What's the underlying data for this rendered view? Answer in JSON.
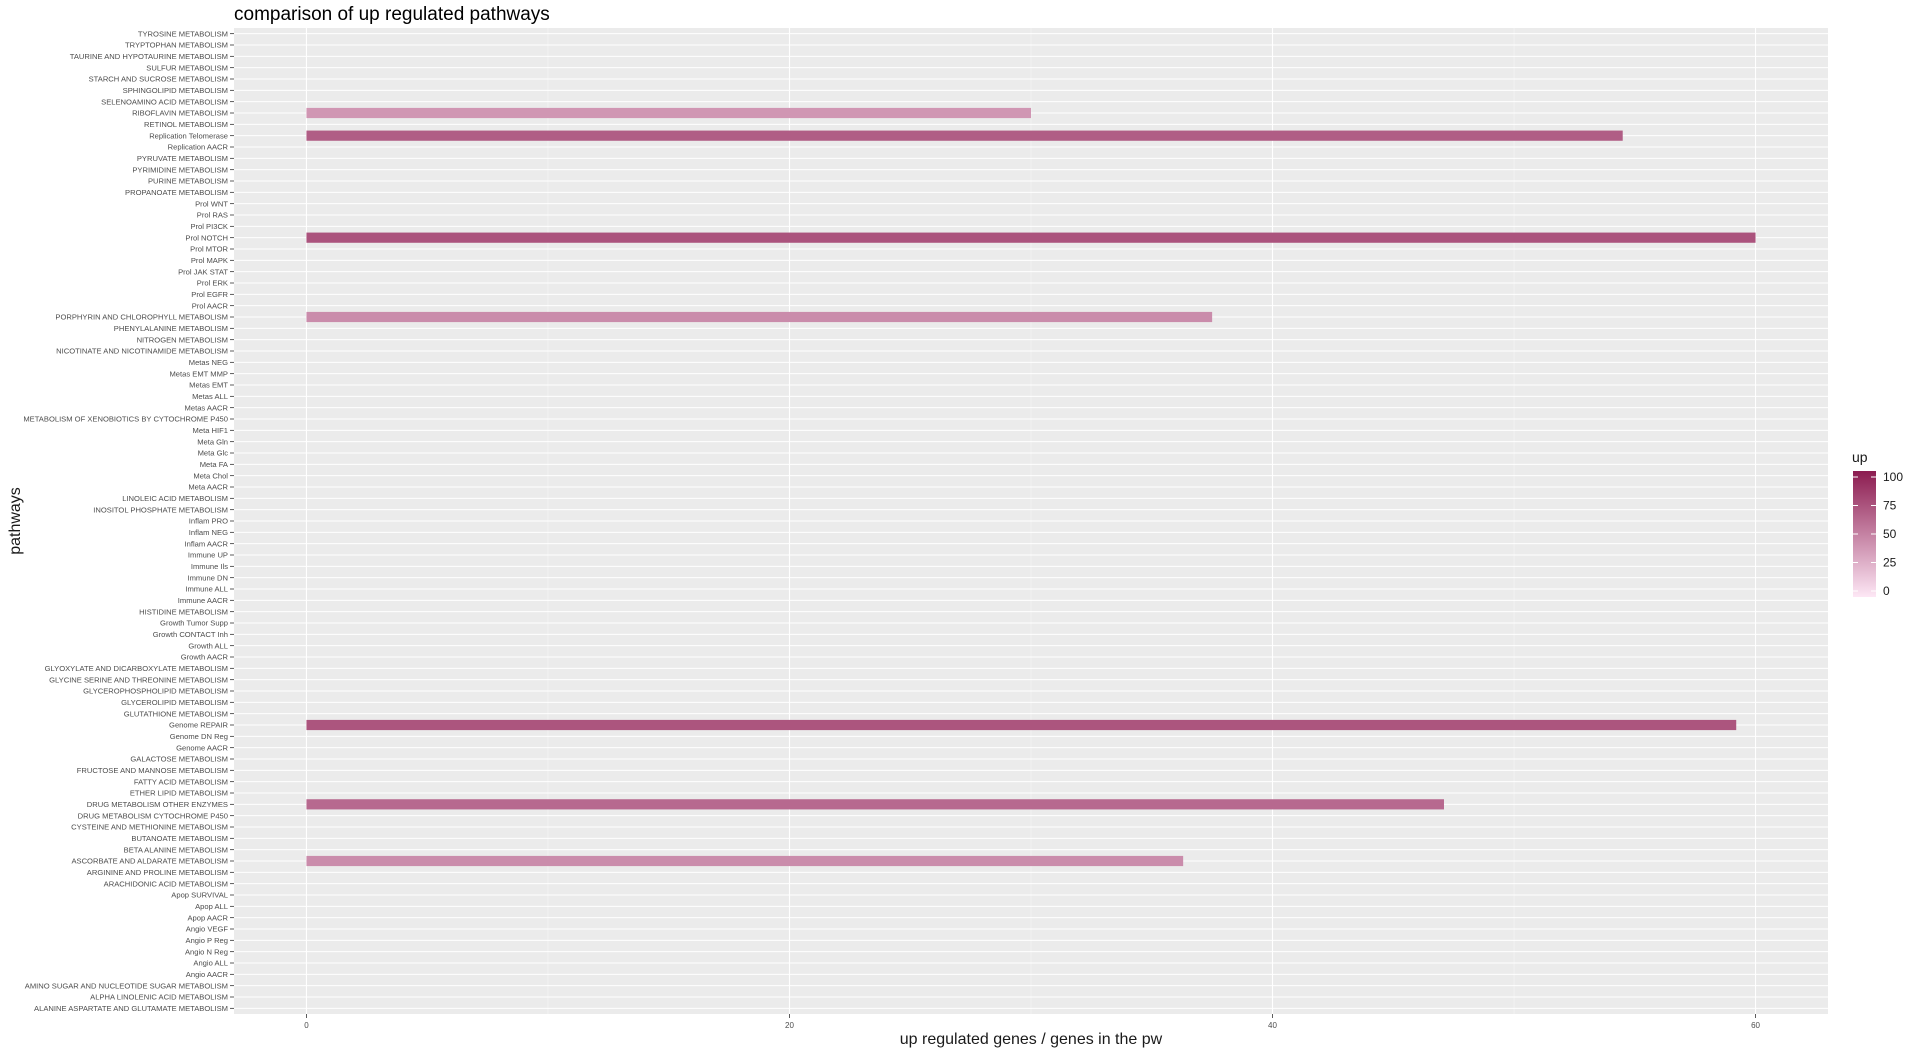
{
  "chart_data": {
    "type": "bar",
    "orientation": "horizontal",
    "title": "comparison of up regulated pathways",
    "xlabel": "up regulated genes / genes in the pw",
    "ylabel": "pathways",
    "xlim": [
      -3,
      63
    ],
    "x_ticks": [
      0,
      20,
      40,
      60
    ],
    "grid": true,
    "categories": [
      "ALANINE ASPARTATE AND GLUTAMATE METABOLISM",
      "ALPHA LINOLENIC ACID METABOLISM",
      "AMINO SUGAR AND NUCLEOTIDE SUGAR METABOLISM",
      "Angio AACR",
      "Angio ALL",
      "Angio N Reg",
      "Angio P Reg",
      "Angio VEGF",
      "Apop AACR",
      "Apop ALL",
      "Apop SURVIVAL",
      "ARACHIDONIC ACID METABOLISM",
      "ARGININE AND PROLINE METABOLISM",
      "ASCORBATE AND ALDARATE METABOLISM",
      "BETA ALANINE METABOLISM",
      "BUTANOATE METABOLISM",
      "CYSTEINE AND METHIONINE METABOLISM",
      "DRUG METABOLISM CYTOCHROME P450",
      "DRUG METABOLISM OTHER ENZYMES",
      "ETHER LIPID METABOLISM",
      "FATTY ACID METABOLISM",
      "FRUCTOSE AND MANNOSE METABOLISM",
      "GALACTOSE METABOLISM",
      "Genome AACR",
      "Genome DN Reg",
      "Genome REPAIR",
      "GLUTATHIONE METABOLISM",
      "GLYCEROLIPID METABOLISM",
      "GLYCEROPHOSPHOLIPID METABOLISM",
      "GLYCINE SERINE AND THREONINE METABOLISM",
      "GLYOXYLATE AND DICARBOXYLATE METABOLISM",
      "Growth AACR",
      "Growth ALL",
      "Growth CONTACT Inh",
      "Growth Tumor Supp",
      "HISTIDINE METABOLISM",
      "Immune AACR",
      "Immune ALL",
      "Immune DN",
      "Immune Ils",
      "Immune UP",
      "Inflam AACR",
      "Inflam NEG",
      "Inflam PRO",
      "INOSITOL PHOSPHATE METABOLISM",
      "LINOLEIC ACID METABOLISM",
      "Meta AACR",
      "Meta Chol",
      "Meta FA",
      "Meta Glc",
      "Meta Gln",
      "Meta HIF1",
      "METABOLISM OF XENOBIOTICS BY CYTOCHROME P450",
      "Metas AACR",
      "Metas ALL",
      "Metas EMT",
      "Metas EMT MMP",
      "Metas NEG",
      "NICOTINATE AND NICOTINAMIDE METABOLISM",
      "NITROGEN METABOLISM",
      "PHENYLALANINE METABOLISM",
      "PORPHYRIN AND CHLOROPHYLL METABOLISM",
      "Prol AACR",
      "Prol EGFR",
      "Prol ERK",
      "Prol JAK STAT",
      "Prol MAPK",
      "Prol MTOR",
      "Prol NOTCH",
      "Prol PI3CK",
      "Prol RAS",
      "Prol WNT",
      "PROPANOATE METABOLISM",
      "PURINE METABOLISM",
      "PYRIMIDINE METABOLISM",
      "PYRUVATE METABOLISM",
      "Replication AACR",
      "Replication Telomerase",
      "RETINOL METABOLISM",
      "RIBOFLAVIN METABOLISM",
      "SELENOAMINO ACID METABOLISM",
      "SPHINGOLIPID METABOLISM",
      "STARCH AND SUCROSE METABOLISM",
      "SULFUR METABOLISM",
      "TAURINE AND HYPOTAURINE METABOLISM",
      "TRYPTOPHAN METABOLISM",
      "TYROSINE METABOLISM"
    ],
    "values": [
      0,
      0,
      0,
      0,
      0,
      0,
      0,
      0,
      0,
      0,
      0,
      0,
      0,
      36.3,
      0,
      0,
      0,
      0,
      47.1,
      0,
      0,
      0,
      0,
      0,
      0,
      59.2,
      0,
      0,
      0,
      0,
      0,
      0,
      0,
      0,
      0,
      0,
      0,
      0,
      0,
      0,
      0,
      0,
      0,
      0,
      0,
      0,
      0,
      0,
      0,
      0,
      0,
      0,
      0,
      0,
      0,
      0,
      0,
      0,
      0,
      0,
      0,
      37.5,
      0,
      0,
      0,
      0,
      0,
      0,
      60,
      0,
      0,
      0,
      0,
      0,
      0,
      0,
      0,
      54.5,
      0,
      30,
      0,
      0,
      0,
      0,
      0,
      0,
      0
    ],
    "fill_values": [
      0,
      0,
      0,
      0,
      0,
      0,
      0,
      0,
      0,
      0,
      0,
      0,
      0,
      45,
      0,
      0,
      0,
      0,
      62,
      0,
      0,
      0,
      0,
      0,
      0,
      72,
      0,
      0,
      0,
      0,
      0,
      0,
      0,
      0,
      0,
      0,
      0,
      0,
      0,
      0,
      0,
      0,
      0,
      0,
      0,
      0,
      0,
      0,
      0,
      0,
      0,
      0,
      0,
      0,
      0,
      0,
      0,
      0,
      0,
      0,
      0,
      45,
      0,
      0,
      0,
      0,
      0,
      0,
      73,
      0,
      0,
      0,
      0,
      0,
      0,
      0,
      0,
      68,
      0,
      40,
      0,
      0,
      0,
      0,
      0,
      0,
      0
    ],
    "legend": {
      "title": "up",
      "labels": [
        "100",
        "75",
        "50",
        "25",
        "0"
      ],
      "range": [
        0,
        100
      ],
      "low_color": "#fde7f5",
      "high_color": "#8c1c50",
      "position": "right"
    },
    "colors": {
      "panel": "#ebebeb",
      "grid_major": "#ffffff",
      "tick": "#333333"
    }
  }
}
